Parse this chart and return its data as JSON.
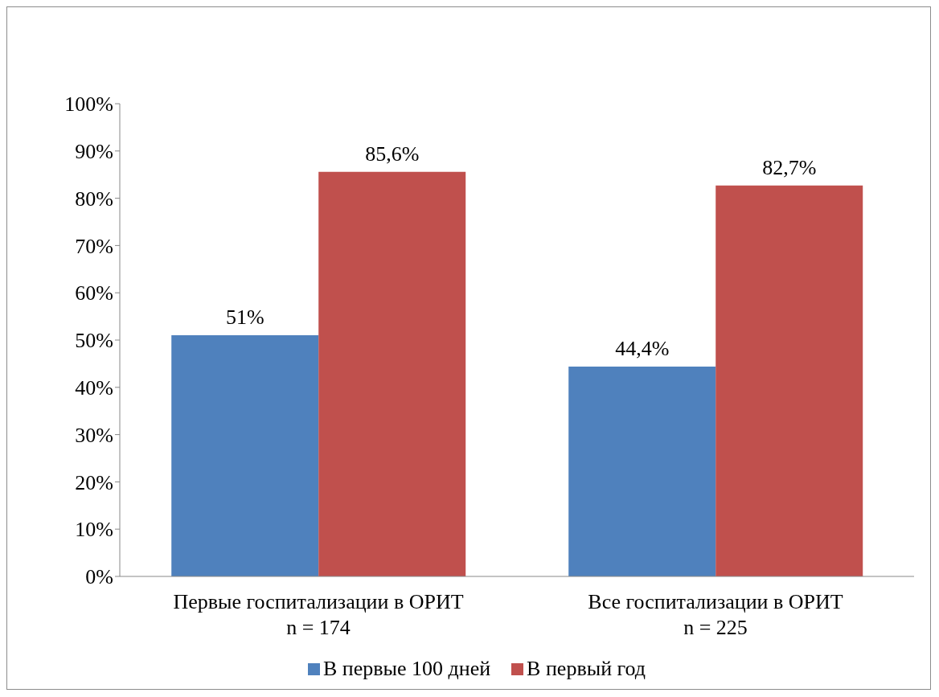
{
  "chart_data": {
    "type": "bar",
    "categories": [
      "Первые госпитализации в ОРИТ\nn = 174",
      "Все госпитализации в ОРИТ\nn = 225"
    ],
    "series": [
      {
        "name": "В первые 100 дней",
        "color": "#4f81bd",
        "values": [
          51,
          44.4
        ],
        "value_labels": [
          "51%",
          "44,4%"
        ]
      },
      {
        "name": "В первый год",
        "color": "#c0504d",
        "values": [
          85.6,
          82.7
        ],
        "value_labels": [
          "85,6%",
          "82,7%"
        ]
      }
    ],
    "ylim": [
      0,
      100
    ],
    "yticks": [
      {
        "value": 0,
        "label": "0%"
      },
      {
        "value": 10,
        "label": "10%"
      },
      {
        "value": 20,
        "label": "20%"
      },
      {
        "value": 30,
        "label": "30%"
      },
      {
        "value": 40,
        "label": "40%"
      },
      {
        "value": 50,
        "label": "50%"
      },
      {
        "value": 60,
        "label": "60%"
      },
      {
        "value": 70,
        "label": "70%"
      },
      {
        "value": 80,
        "label": "80%"
      },
      {
        "value": 90,
        "label": "90%"
      },
      {
        "value": 100,
        "label": "100%"
      }
    ],
    "grid": false,
    "legend": "bottom"
  }
}
